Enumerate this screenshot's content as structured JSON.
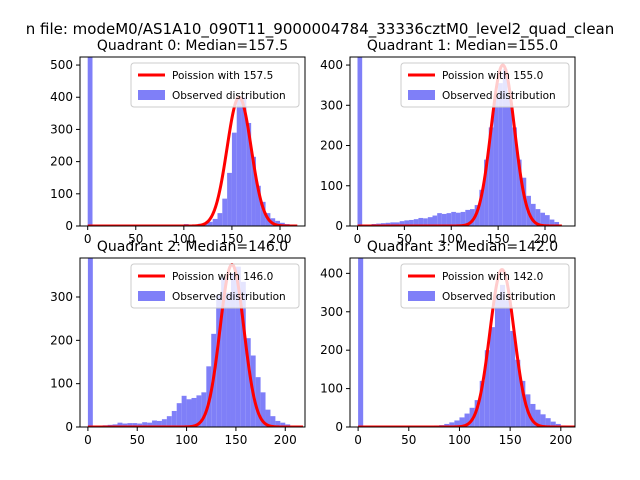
{
  "figure": {
    "suptitle": "n file: modeM0/AS1A10_090T11_9000004784_33336cztM0_level2_quad_clean"
  },
  "colors": {
    "hist": "#7f7ff8",
    "poisson": "#ff0000",
    "axis": "#000000"
  },
  "chart_data": [
    {
      "type": "bar",
      "title": "Quadrant 0: Median=157.5",
      "xlim": [
        -8,
        226
      ],
      "ylim": [
        0,
        525
      ],
      "xticks": [
        0,
        50,
        100,
        150,
        200
      ],
      "yticks": [
        0,
        100,
        200,
        300,
        400,
        500
      ],
      "bin_width": 5,
      "bins": [
        [
          0,
          525
        ],
        [
          100,
          6
        ],
        [
          105,
          3
        ],
        [
          110,
          4
        ],
        [
          115,
          7
        ],
        [
          120,
          8
        ],
        [
          125,
          13
        ],
        [
          130,
          22
        ],
        [
          135,
          40
        ],
        [
          140,
          85
        ],
        [
          145,
          165
        ],
        [
          150,
          290
        ],
        [
          155,
          400
        ],
        [
          160,
          400
        ],
        [
          165,
          320
        ],
        [
          170,
          215
        ],
        [
          175,
          125
        ],
        [
          180,
          75
        ],
        [
          185,
          40
        ],
        [
          190,
          24
        ],
        [
          195,
          16
        ],
        [
          200,
          10
        ],
        [
          205,
          6
        ],
        [
          210,
          3
        ]
      ],
      "poisson_mean": 157.5,
      "poisson_peak": 400,
      "legend": {
        "poisson_label": "Poission with 157.5",
        "observed_label": "Observed distribution"
      }
    },
    {
      "type": "bar",
      "title": "Quadrant 1: Median=155.0",
      "xlim": [
        -8,
        232
      ],
      "ylim": [
        0,
        420
      ],
      "xticks": [
        0,
        50,
        100,
        150,
        200
      ],
      "yticks": [
        0,
        100,
        200,
        300,
        400
      ],
      "bin_width": 5,
      "bins": [
        [
          0,
          420
        ],
        [
          10,
          3
        ],
        [
          15,
          5
        ],
        [
          20,
          6
        ],
        [
          25,
          7
        ],
        [
          30,
          8
        ],
        [
          35,
          9
        ],
        [
          40,
          9
        ],
        [
          45,
          12
        ],
        [
          50,
          14
        ],
        [
          55,
          15
        ],
        [
          60,
          17
        ],
        [
          65,
          20
        ],
        [
          70,
          19
        ],
        [
          75,
          22
        ],
        [
          80,
          26
        ],
        [
          85,
          32
        ],
        [
          90,
          30
        ],
        [
          95,
          32
        ],
        [
          100,
          35
        ],
        [
          105,
          33
        ],
        [
          110,
          35
        ],
        [
          115,
          40
        ],
        [
          120,
          42
        ],
        [
          125,
          52
        ],
        [
          130,
          90
        ],
        [
          135,
          165
        ],
        [
          140,
          245
        ],
        [
          145,
          320
        ],
        [
          150,
          355
        ],
        [
          155,
          390
        ],
        [
          160,
          320
        ],
        [
          165,
          245
        ],
        [
          170,
          165
        ],
        [
          175,
          120
        ],
        [
          180,
          75
        ],
        [
          185,
          55
        ],
        [
          190,
          42
        ],
        [
          195,
          33
        ],
        [
          200,
          27
        ],
        [
          205,
          16
        ],
        [
          210,
          10
        ]
      ],
      "poisson_mean": 155.0,
      "poisson_peak": 400,
      "legend": {
        "poisson_label": "Poission with 155.0",
        "observed_label": "Observed distribution"
      }
    },
    {
      "type": "bar",
      "title": "Quadrant 2: Median=146.0",
      "xlim": [
        -8,
        220
      ],
      "ylim": [
        0,
        390
      ],
      "xticks": [
        0,
        50,
        100,
        150,
        200
      ],
      "yticks": [
        0,
        100,
        200,
        300
      ],
      "bin_width": 5,
      "bins": [
        [
          0,
          390
        ],
        [
          10,
          3
        ],
        [
          15,
          4
        ],
        [
          20,
          5
        ],
        [
          25,
          6
        ],
        [
          30,
          10
        ],
        [
          35,
          8
        ],
        [
          40,
          9
        ],
        [
          45,
          9
        ],
        [
          50,
          8
        ],
        [
          55,
          11
        ],
        [
          60,
          10
        ],
        [
          65,
          15
        ],
        [
          70,
          14
        ],
        [
          75,
          18
        ],
        [
          80,
          25
        ],
        [
          85,
          37
        ],
        [
          90,
          55
        ],
        [
          95,
          72
        ],
        [
          100,
          64
        ],
        [
          105,
          67
        ],
        [
          110,
          73
        ],
        [
          115,
          80
        ],
        [
          120,
          140
        ],
        [
          125,
          215
        ],
        [
          130,
          305
        ],
        [
          135,
          345
        ],
        [
          140,
          310
        ],
        [
          145,
          355
        ],
        [
          150,
          370
        ],
        [
          155,
          335
        ],
        [
          160,
          205
        ],
        [
          165,
          165
        ],
        [
          170,
          115
        ],
        [
          175,
          80
        ],
        [
          180,
          40
        ],
        [
          185,
          25
        ],
        [
          190,
          14
        ],
        [
          195,
          10
        ],
        [
          200,
          6
        ],
        [
          205,
          3
        ]
      ],
      "poisson_mean": 146.0,
      "poisson_peak": 375,
      "legend": {
        "poisson_label": "Poission with 146.0",
        "observed_label": "Observed distribution"
      }
    },
    {
      "type": "bar",
      "title": "Quadrant 3: Median=142.0",
      "xlim": [
        -8,
        214
      ],
      "ylim": [
        0,
        440
      ],
      "xticks": [
        0,
        50,
        100,
        150,
        200
      ],
      "yticks": [
        0,
        100,
        200,
        300,
        400
      ],
      "bin_width": 5,
      "bins": [
        [
          0,
          440
        ],
        [
          75,
          4
        ],
        [
          80,
          5
        ],
        [
          85,
          8
        ],
        [
          90,
          12
        ],
        [
          95,
          17
        ],
        [
          100,
          25
        ],
        [
          105,
          35
        ],
        [
          110,
          50
        ],
        [
          115,
          70
        ],
        [
          120,
          120
        ],
        [
          125,
          200
        ],
        [
          130,
          260
        ],
        [
          135,
          345
        ],
        [
          140,
          370
        ],
        [
          145,
          330
        ],
        [
          150,
          250
        ],
        [
          155,
          175
        ],
        [
          160,
          120
        ],
        [
          165,
          85
        ],
        [
          170,
          60
        ],
        [
          175,
          45
        ],
        [
          180,
          33
        ],
        [
          185,
          23
        ],
        [
          190,
          14
        ],
        [
          195,
          8
        ],
        [
          200,
          4
        ]
      ],
      "poisson_mean": 142.0,
      "poisson_peak": 410,
      "legend": {
        "poisson_label": "Poission with 142.0",
        "observed_label": "Observed distribution"
      }
    }
  ]
}
